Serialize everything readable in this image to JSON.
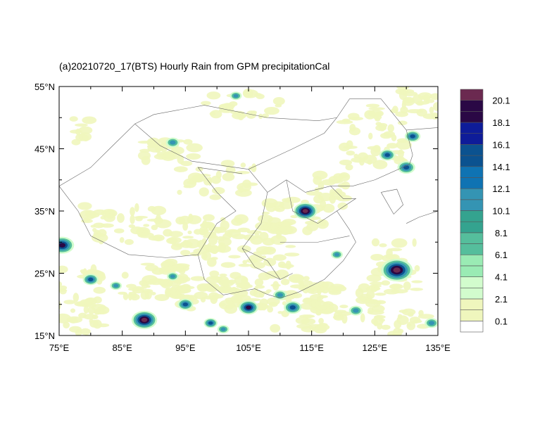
{
  "title": "(a)20210720_17(BTS) Hourly Rain from GPM precipitationCal",
  "map": {
    "lon_range": [
      75,
      135
    ],
    "lat_range": [
      15,
      55
    ],
    "lon_ticks": [
      "75°E",
      "85°E",
      "95°E",
      "105°E",
      "115°E",
      "125°E",
      "135°E"
    ],
    "lat_ticks": [
      "55°N",
      "45°N",
      "35°N",
      "25°N",
      "15°N"
    ]
  },
  "colorbar": {
    "labels": [
      "0.1",
      "2.1",
      "4.1",
      "6.1",
      "8.1",
      "10.1",
      "12.1",
      "14.1",
      "16.1",
      "18.1",
      "20.1"
    ],
    "colors": [
      "#ffffff",
      "#eff6bd",
      "#eff6bd",
      "#d2fccd",
      "#d2fccd",
      "#9aebb4",
      "#9aebb4",
      "#55be9c",
      "#55be9c",
      "#34a38f",
      "#34a38f",
      "#3494b3",
      "#3494b3",
      "#0f73b3",
      "#0f73b3",
      "#0b5290",
      "#0b5290",
      "#0e1c99",
      "#0e1c99",
      "#2a0845",
      "#2a0845",
      "#6b2950"
    ]
  }
}
